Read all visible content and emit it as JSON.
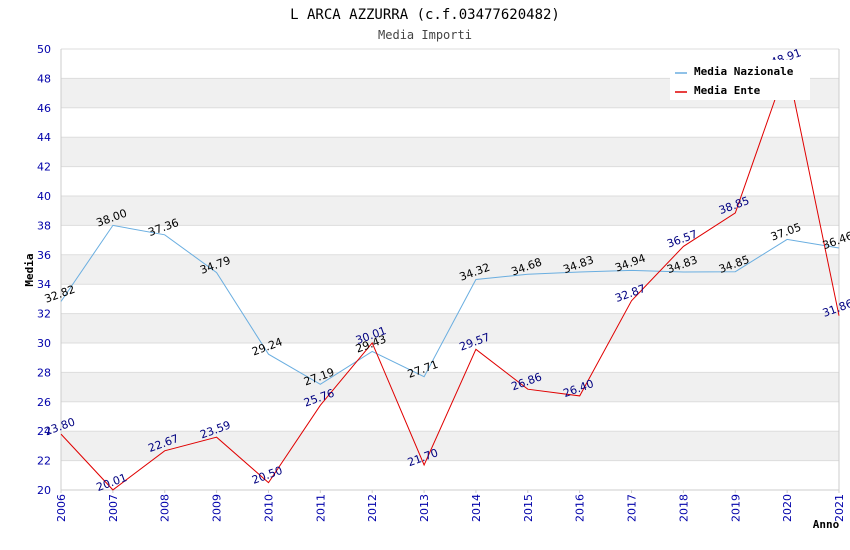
{
  "chart_data": {
    "type": "line",
    "title": "L ARCA AZZURRA (c.f.03477620482)",
    "subtitle": "Media Importi",
    "xlabel": "Anno",
    "ylabel": "Media",
    "ylim": [
      20,
      50
    ],
    "yticks": [
      "20",
      "22",
      "24",
      "26",
      "28",
      "30",
      "32",
      "34",
      "36",
      "38",
      "40",
      "42",
      "44",
      "46",
      "48",
      "50"
    ],
    "categories": [
      "2006",
      "2007",
      "2008",
      "2009",
      "2010",
      "2011",
      "2012",
      "2013",
      "2014",
      "2015",
      "2016",
      "2017",
      "2018",
      "2019",
      "2020",
      "2021"
    ],
    "series": [
      {
        "name": "Media Nazionale",
        "color": "#6aaee0",
        "label_color": "#000000",
        "values": [
          32.82,
          38.0,
          37.36,
          34.79,
          29.24,
          27.19,
          29.43,
          27.71,
          34.32,
          34.68,
          34.83,
          34.94,
          34.83,
          34.85,
          37.05,
          36.46
        ],
        "labels": [
          "32.82",
          "38.00",
          "37.36",
          "34.79",
          "29.24",
          "27.19",
          "29.43",
          "27.71",
          "34.32",
          "34.68",
          "34.83",
          "34.94",
          "34.83",
          "34.85",
          "37.05",
          "36.46"
        ]
      },
      {
        "name": "Media Ente",
        "color": "#e00000",
        "label_color": "#000080",
        "values": [
          23.8,
          20.01,
          22.67,
          23.59,
          20.5,
          25.76,
          30.01,
          21.7,
          29.57,
          26.86,
          26.4,
          32.87,
          36.57,
          38.85,
          48.91,
          31.86
        ],
        "labels": [
          "23.80",
          "20.01",
          "22.67",
          "23.59",
          "20.50",
          "25.76",
          "30.01",
          "21.70",
          "29.57",
          "26.86",
          "26.40",
          "32.87",
          "36.57",
          "38.85",
          "48.91",
          "31.86"
        ]
      }
    ],
    "legend_position": "top-right",
    "grid": true
  }
}
